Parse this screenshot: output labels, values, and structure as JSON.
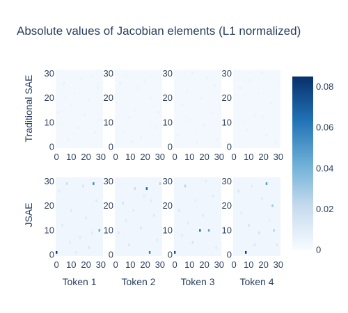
{
  "chart_data": {
    "type": "heatmap",
    "title": "Absolute values of Jacobian elements (L1 normalized)",
    "colorscale": "Blues",
    "colors": [
      "#f7fbff",
      "#c6dbef",
      "#6baed6",
      "#2171b5",
      "#08306b"
    ],
    "zlim": [
      0,
      0.085
    ],
    "colorbar_ticks": [
      "0",
      "0.02",
      "0.04",
      "0.06",
      "0.08"
    ],
    "colorbar_tick_values": [
      0,
      0.02,
      0.04,
      0.06,
      0.08
    ],
    "grid_size": 32,
    "xlim": [
      0,
      31
    ],
    "ylim": [
      0,
      31
    ],
    "axis_ticks": [
      "0",
      "10",
      "20",
      "30"
    ],
    "axis_tick_values": [
      0,
      10,
      20,
      30
    ],
    "rows": [
      {
        "label": "Traditional SAE",
        "panels": [
          {
            "name": "Token 1",
            "background": 0.002,
            "cells": [
              [
                1,
                14,
                0.007
              ],
              [
                8,
                3,
                0.006
              ],
              [
                15,
                8,
                0.005
              ],
              [
                22,
                19,
                0.006
              ],
              [
                28,
                24,
                0.005
              ],
              [
                5,
                26,
                0.005
              ],
              [
                12,
                22,
                0.004
              ],
              [
                26,
                6,
                0.006
              ],
              [
                19,
                13,
                0.005
              ],
              [
                3,
                9,
                0.004
              ],
              [
                24,
                29,
                0.005
              ],
              [
                17,
                28,
                0.006
              ],
              [
                10,
                17,
                0.004
              ],
              [
                29,
                11,
                0.005
              ],
              [
                6,
                20,
                0.004
              ]
            ]
          },
          {
            "name": "Token 2",
            "background": 0.002,
            "cells": [
              [
                3,
                26,
                0.007
              ],
              [
                9,
                12,
                0.006
              ],
              [
                17,
                4,
                0.006
              ],
              [
                24,
                20,
                0.005
              ],
              [
                13,
                15,
                0.006
              ],
              [
                27,
                8,
                0.005
              ],
              [
                6,
                6,
                0.006
              ],
              [
                20,
                27,
                0.005
              ],
              [
                1,
                18,
                0.004
              ],
              [
                15,
                24,
                0.005
              ],
              [
                29,
                14,
                0.005
              ],
              [
                11,
                2,
                0.006
              ],
              [
                23,
                10,
                0.004
              ],
              [
                7,
                29,
                0.004
              ]
            ]
          },
          {
            "name": "Token 3",
            "background": 0.002,
            "cells": [
              [
                12,
                30,
                0.007
              ],
              [
                20,
                9,
                0.006
              ],
              [
                5,
                17,
                0.005
              ],
              [
                27,
                25,
                0.006
              ],
              [
                15,
                2,
                0.006
              ],
              [
                8,
                23,
                0.005
              ],
              [
                25,
                14,
                0.004
              ],
              [
                2,
                5,
                0.005
              ],
              [
                18,
                20,
                0.005
              ],
              [
                29,
                3,
                0.006
              ],
              [
                10,
                11,
                0.004
              ],
              [
                22,
                28,
                0.005
              ],
              [
                14,
                6,
                0.004
              ]
            ]
          },
          {
            "name": "Token 4",
            "background": 0.002,
            "cells": [
              [
                4,
                24,
                0.006
              ],
              [
                19,
                30,
                0.006
              ],
              [
                25,
                18,
                0.007
              ],
              [
                9,
                7,
                0.006
              ],
              [
                28,
                2,
                0.006
              ],
              [
                14,
                13,
                0.005
              ],
              [
                2,
                16,
                0.004
              ],
              [
                22,
                5,
                0.005
              ],
              [
                11,
                27,
                0.005
              ],
              [
                16,
                22,
                0.004
              ],
              [
                7,
                10,
                0.005
              ],
              [
                30,
                26,
                0.004
              ],
              [
                20,
                12,
                0.005
              ]
            ]
          }
        ]
      },
      {
        "label": "JSAE",
        "panels": [
          {
            "name": "Token 1",
            "background": 0.003,
            "cells": [
              [
                0,
                1,
                0.082
              ],
              [
                25,
                29,
                0.055
              ],
              [
                29,
                10,
                0.045
              ],
              [
                7,
                29,
                0.02
              ],
              [
                18,
                28,
                0.015
              ],
              [
                22,
                3,
                0.014
              ],
              [
                10,
                18,
                0.012
              ],
              [
                4,
                12,
                0.012
              ],
              [
                16,
                7,
                0.011
              ],
              [
                27,
                22,
                0.012
              ],
              [
                13,
                1,
                0.011
              ],
              [
                2,
                26,
                0.01
              ],
              [
                20,
                15,
                0.01
              ],
              [
                9,
                5,
                0.01
              ],
              [
                24,
                9,
                0.011
              ]
            ]
          },
          {
            "name": "Token 2",
            "background": 0.003,
            "cells": [
              [
                21,
                27,
                0.065
              ],
              [
                23,
                1,
                0.06
              ],
              [
                30,
                29,
                0.025
              ],
              [
                13,
                27,
                0.02
              ],
              [
                5,
                21,
                0.016
              ],
              [
                17,
                11,
                0.015
              ],
              [
                9,
                4,
                0.014
              ],
              [
                26,
                16,
                0.012
              ],
              [
                2,
                9,
                0.012
              ],
              [
                12,
                18,
                0.011
              ],
              [
                28,
                6,
                0.011
              ],
              [
                19,
                24,
                0.01
              ],
              [
                7,
                14,
                0.01
              ],
              [
                24,
                22,
                0.01
              ]
            ]
          },
          {
            "name": "Token 3",
            "background": 0.003,
            "cells": [
              [
                0,
                1,
                0.075
              ],
              [
                17,
                10,
                0.065
              ],
              [
                23,
                10,
                0.045
              ],
              [
                7,
                28,
                0.025
              ],
              [
                12,
                5,
                0.016
              ],
              [
                3,
                18,
                0.014
              ],
              [
                26,
                24,
                0.012
              ],
              [
                19,
                16,
                0.012
              ],
              [
                9,
                13,
                0.011
              ],
              [
                28,
                3,
                0.011
              ],
              [
                14,
                22,
                0.01
              ],
              [
                5,
                8,
                0.01
              ],
              [
                21,
                30,
                0.01
              ]
            ]
          },
          {
            "name": "Token 4",
            "background": 0.003,
            "cells": [
              [
                8,
                1,
                0.08
              ],
              [
                22,
                29,
                0.05
              ],
              [
                26,
                20,
                0.03
              ],
              [
                27,
                10,
                0.025
              ],
              [
                17,
                9,
                0.018
              ],
              [
                10,
                12,
                0.016
              ],
              [
                3,
                26,
                0.014
              ],
              [
                14,
                4,
                0.013
              ],
              [
                29,
                4,
                0.012
              ],
              [
                5,
                17,
                0.011
              ],
              [
                19,
                23,
                0.011
              ],
              [
                12,
                28,
                0.01
              ],
              [
                24,
                14,
                0.01
              ]
            ]
          }
        ]
      }
    ]
  }
}
